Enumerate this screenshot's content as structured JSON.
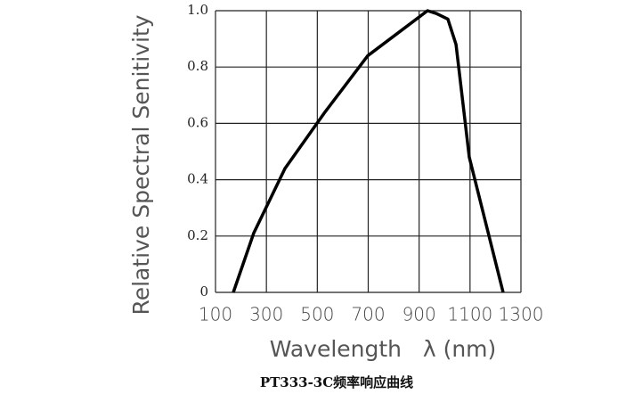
{
  "chart_data": {
    "type": "line",
    "title": "PT333-3C频率响应曲线",
    "xlabel": "Wavelength   λ (nm)",
    "ylabel": "Relative Spectral Senitivity",
    "x": [
      170,
      250,
      373,
      530,
      698,
      845,
      933,
      968,
      1013,
      1045,
      1097,
      1230
    ],
    "values": [
      0,
      0.21,
      0.44,
      0.64,
      0.84,
      0.94,
      1.0,
      0.99,
      0.97,
      0.88,
      0.48,
      0
    ],
    "color": "#000000",
    "xlim": [
      100,
      1300
    ],
    "ylim": [
      0,
      1
    ],
    "xticks": [
      100,
      300,
      500,
      700,
      900,
      1100,
      1300
    ],
    "yticks": [
      0,
      0.2,
      0.4,
      0.6,
      0.8,
      {
        "value": 1,
        "label": "1.0"
      }
    ],
    "grid": true
  }
}
